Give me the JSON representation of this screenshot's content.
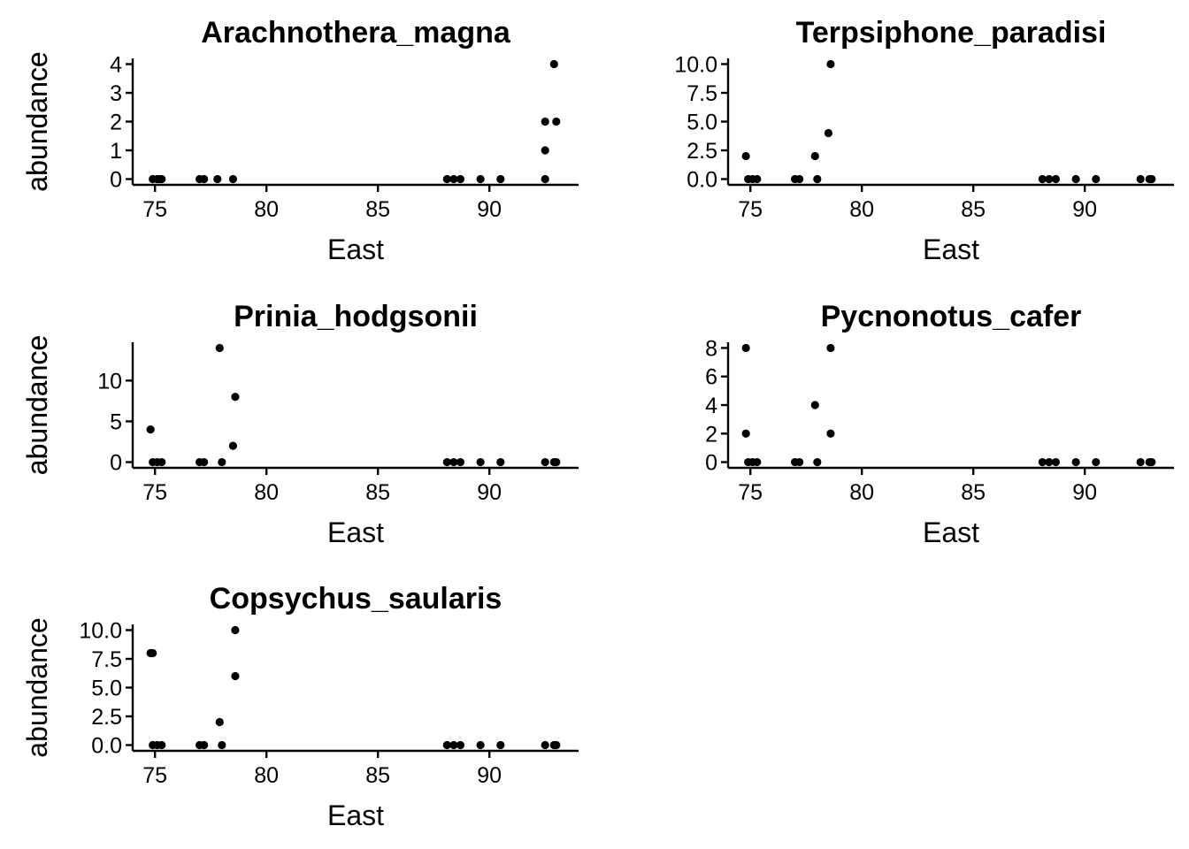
{
  "chart_data": [
    {
      "type": "scatter",
      "title": "Arachnothera_magna",
      "xlabel": "East",
      "ylabel": "abundance",
      "xlim": [
        74,
        94
      ],
      "ylim": [
        0,
        4
      ],
      "xticks": [
        75,
        80,
        85,
        90
      ],
      "xtick_labels": [
        "75",
        "80",
        "85",
        "90"
      ],
      "yticks": [
        0,
        1,
        2,
        3,
        4
      ],
      "ytick_labels": [
        "0",
        "1",
        "2",
        "3",
        "4"
      ],
      "points": [
        [
          74.9,
          0
        ],
        [
          75.1,
          0
        ],
        [
          75.2,
          0
        ],
        [
          75.3,
          0
        ],
        [
          77.0,
          0
        ],
        [
          77.2,
          0
        ],
        [
          77.8,
          0
        ],
        [
          78.5,
          0
        ],
        [
          88.1,
          0
        ],
        [
          88.4,
          0
        ],
        [
          88.7,
          0
        ],
        [
          89.6,
          0
        ],
        [
          90.5,
          0
        ],
        [
          92.5,
          0
        ],
        [
          92.5,
          1
        ],
        [
          92.5,
          2
        ],
        [
          92.9,
          4
        ],
        [
          93.0,
          2
        ]
      ]
    },
    {
      "type": "scatter",
      "title": "Terpsiphone_paradisi",
      "xlabel": "East",
      "ylabel": "abundance",
      "xlim": [
        74,
        94
      ],
      "ylim": [
        0,
        10
      ],
      "xticks": [
        75,
        80,
        85,
        90
      ],
      "xtick_labels": [
        "75",
        "80",
        "85",
        "90"
      ],
      "yticks": [
        0,
        2.5,
        5,
        7.5,
        10
      ],
      "ytick_labels": [
        "0.0",
        "2.5",
        "5.0",
        "7.5",
        "10.0"
      ],
      "points": [
        [
          74.8,
          2
        ],
        [
          74.9,
          0
        ],
        [
          75.1,
          0
        ],
        [
          75.3,
          0
        ],
        [
          77.0,
          0
        ],
        [
          77.2,
          0
        ],
        [
          77.9,
          2
        ],
        [
          78.0,
          0
        ],
        [
          78.5,
          4
        ],
        [
          78.6,
          10
        ],
        [
          88.1,
          0
        ],
        [
          88.4,
          0
        ],
        [
          88.7,
          0
        ],
        [
          89.6,
          0
        ],
        [
          90.5,
          0
        ],
        [
          92.5,
          0
        ],
        [
          92.9,
          0
        ],
        [
          93.0,
          0
        ]
      ]
    },
    {
      "type": "scatter",
      "title": "Prinia_hodgsonii",
      "xlabel": "East",
      "ylabel": "abundance",
      "xlim": [
        74,
        94
      ],
      "ylim": [
        0,
        14
      ],
      "xticks": [
        75,
        80,
        85,
        90
      ],
      "xtick_labels": [
        "75",
        "80",
        "85",
        "90"
      ],
      "yticks": [
        0,
        5,
        10
      ],
      "ytick_labels": [
        "0",
        "5",
        "10"
      ],
      "points": [
        [
          74.8,
          4
        ],
        [
          74.9,
          0
        ],
        [
          75.1,
          0
        ],
        [
          75.3,
          0
        ],
        [
          77.0,
          0
        ],
        [
          77.2,
          0
        ],
        [
          77.9,
          14
        ],
        [
          78.0,
          0
        ],
        [
          78.5,
          2
        ],
        [
          78.6,
          8
        ],
        [
          88.1,
          0
        ],
        [
          88.4,
          0
        ],
        [
          88.7,
          0
        ],
        [
          89.6,
          0
        ],
        [
          90.5,
          0
        ],
        [
          92.5,
          0
        ],
        [
          92.9,
          0
        ],
        [
          93.0,
          0
        ]
      ]
    },
    {
      "type": "scatter",
      "title": "Pycnonotus_cafer",
      "xlabel": "East",
      "ylabel": "abundance",
      "xlim": [
        74,
        94
      ],
      "ylim": [
        0,
        8
      ],
      "xticks": [
        75,
        80,
        85,
        90
      ],
      "xtick_labels": [
        "75",
        "80",
        "85",
        "90"
      ],
      "yticks": [
        0,
        2,
        4,
        6,
        8
      ],
      "ytick_labels": [
        "0",
        "2",
        "4",
        "6",
        "8"
      ],
      "points": [
        [
          74.8,
          8
        ],
        [
          74.8,
          2
        ],
        [
          74.9,
          0
        ],
        [
          75.1,
          0
        ],
        [
          75.3,
          0
        ],
        [
          77.0,
          0
        ],
        [
          77.2,
          0
        ],
        [
          77.9,
          4
        ],
        [
          78.0,
          0
        ],
        [
          78.6,
          8
        ],
        [
          78.6,
          2
        ],
        [
          88.1,
          0
        ],
        [
          88.4,
          0
        ],
        [
          88.7,
          0
        ],
        [
          89.6,
          0
        ],
        [
          90.5,
          0
        ],
        [
          92.5,
          0
        ],
        [
          92.9,
          0
        ],
        [
          93.0,
          0
        ]
      ]
    },
    {
      "type": "scatter",
      "title": "Copsychus_saularis",
      "xlabel": "East",
      "ylabel": "abundance",
      "xlim": [
        74,
        94
      ],
      "ylim": [
        0,
        10
      ],
      "xticks": [
        75,
        80,
        85,
        90
      ],
      "xtick_labels": [
        "75",
        "80",
        "85",
        "90"
      ],
      "yticks": [
        0,
        2.5,
        5,
        7.5,
        10
      ],
      "ytick_labels": [
        "0.0",
        "2.5",
        "5.0",
        "7.5",
        "10.0"
      ],
      "points": [
        [
          74.8,
          8
        ],
        [
          74.9,
          8
        ],
        [
          74.9,
          0
        ],
        [
          75.1,
          0
        ],
        [
          75.3,
          0
        ],
        [
          77.0,
          0
        ],
        [
          77.2,
          0
        ],
        [
          77.9,
          2
        ],
        [
          78.0,
          0
        ],
        [
          78.6,
          10
        ],
        [
          78.6,
          6
        ],
        [
          88.1,
          0
        ],
        [
          88.4,
          0
        ],
        [
          88.7,
          0
        ],
        [
          89.6,
          0
        ],
        [
          90.5,
          0
        ],
        [
          92.5,
          0
        ],
        [
          92.9,
          0
        ],
        [
          93.0,
          0
        ]
      ]
    }
  ]
}
